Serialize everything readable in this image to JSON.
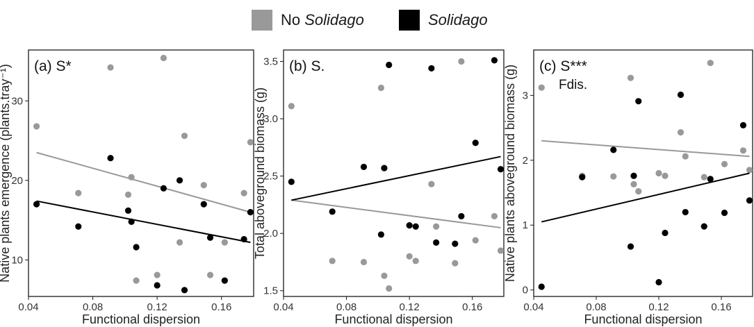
{
  "legend": {
    "items": [
      {
        "prefix": "No ",
        "italic": "Solidago",
        "color": "#999999"
      },
      {
        "prefix": "",
        "italic": "Solidago",
        "color": "#000000"
      }
    ]
  },
  "colors": {
    "no_solidago": "#999999",
    "solidago": "#000000"
  },
  "chart_data": [
    {
      "type": "scatter",
      "panel_label": "(a) S*",
      "panel_sublabel": "",
      "xlabel": "Functional dispersion",
      "ylabel": "Native plants emergence (plants.tray⁻¹)",
      "xlim": [
        0.04,
        0.18
      ],
      "ylim": [
        5.4,
        36.4
      ],
      "xticks": [
        0.04,
        0.08,
        0.12,
        0.16
      ],
      "xtick_labels": [
        "0.04",
        "0.08",
        "0.12",
        "0.16"
      ],
      "yticks": [
        10,
        20,
        30
      ],
      "ytick_labels": [
        "10",
        "20",
        "30"
      ],
      "series": [
        {
          "name": "No Solidago",
          "points": [
            [
              0.045,
              26.8
            ],
            [
              0.071,
              18.4
            ],
            [
              0.091,
              34.2
            ],
            [
              0.102,
              18.2
            ],
            [
              0.104,
              20.4
            ],
            [
              0.107,
              7.4
            ],
            [
              0.12,
              8.1
            ],
            [
              0.124,
              35.4
            ],
            [
              0.134,
              12.2
            ],
            [
              0.137,
              25.6
            ],
            [
              0.149,
              19.4
            ],
            [
              0.153,
              8.1
            ],
            [
              0.162,
              12.2
            ],
            [
              0.174,
              18.4
            ],
            [
              0.178,
              24.8
            ]
          ],
          "fit": [
            [
              0.045,
              23.5
            ],
            [
              0.178,
              16.0
            ]
          ]
        },
        {
          "name": "Solidago",
          "points": [
            [
              0.045,
              17.0
            ],
            [
              0.071,
              14.2
            ],
            [
              0.091,
              22.8
            ],
            [
              0.102,
              16.2
            ],
            [
              0.104,
              14.8
            ],
            [
              0.107,
              11.6
            ],
            [
              0.12,
              6.8
            ],
            [
              0.124,
              19.0
            ],
            [
              0.134,
              20.0
            ],
            [
              0.137,
              6.2
            ],
            [
              0.149,
              17.0
            ],
            [
              0.153,
              12.8
            ],
            [
              0.162,
              7.4
            ],
            [
              0.174,
              12.6
            ],
            [
              0.178,
              16.0
            ]
          ],
          "fit": [
            [
              0.045,
              17.4
            ],
            [
              0.178,
              12.2
            ]
          ]
        }
      ]
    },
    {
      "type": "scatter",
      "panel_label": "(b) S.",
      "panel_sublabel": "",
      "xlabel": "Functional dispersion",
      "ylabel": "Total aboveground biomass (g)",
      "xlim": [
        0.04,
        0.18
      ],
      "ylim": [
        1.45,
        3.6
      ],
      "xticks": [
        0.04,
        0.08,
        0.12,
        0.16
      ],
      "xtick_labels": [
        "0.04",
        "0.08",
        "0.12",
        "0.16"
      ],
      "yticks": [
        1.5,
        2.0,
        2.5,
        3.0,
        3.5
      ],
      "ytick_labels": [
        "1.5",
        "2.0",
        "2.5",
        "3.0",
        "3.5"
      ],
      "series": [
        {
          "name": "No Solidago",
          "points": [
            [
              0.045,
              3.11
            ],
            [
              0.071,
              1.76
            ],
            [
              0.091,
              1.75
            ],
            [
              0.102,
              3.27
            ],
            [
              0.104,
              1.63
            ],
            [
              0.107,
              1.52
            ],
            [
              0.12,
              1.8
            ],
            [
              0.124,
              1.76
            ],
            [
              0.134,
              2.43
            ],
            [
              0.137,
              2.06
            ],
            [
              0.149,
              1.74
            ],
            [
              0.153,
              3.5
            ],
            [
              0.162,
              1.94
            ],
            [
              0.174,
              2.15
            ],
            [
              0.178,
              1.85
            ]
          ],
          "fit": [
            [
              0.045,
              2.29
            ],
            [
              0.178,
              2.05
            ]
          ]
        },
        {
          "name": "Solidago",
          "points": [
            [
              0.045,
              2.45
            ],
            [
              0.071,
              2.19
            ],
            [
              0.091,
              2.58
            ],
            [
              0.102,
              1.99
            ],
            [
              0.104,
              2.57
            ],
            [
              0.107,
              3.47
            ],
            [
              0.12,
              2.07
            ],
            [
              0.124,
              2.06
            ],
            [
              0.134,
              3.44
            ],
            [
              0.137,
              1.92
            ],
            [
              0.149,
              1.91
            ],
            [
              0.153,
              2.15
            ],
            [
              0.162,
              2.79
            ],
            [
              0.174,
              3.51
            ],
            [
              0.178,
              2.56
            ]
          ],
          "fit": [
            [
              0.045,
              2.29
            ],
            [
              0.178,
              2.67
            ]
          ]
        }
      ]
    },
    {
      "type": "scatter",
      "panel_label": "(c) S***",
      "panel_sublabel": "Fdis.",
      "xlabel": "Functional dispersion",
      "ylabel": "Native plants aboveground biomass (g)",
      "xlim": [
        0.04,
        0.18
      ],
      "ylim": [
        -0.1,
        3.7
      ],
      "xticks": [
        0.04,
        0.08,
        0.12,
        0.16
      ],
      "xtick_labels": [
        "0.04",
        "0.08",
        "0.12",
        "0.16"
      ],
      "yticks": [
        0,
        1,
        2,
        3
      ],
      "ytick_labels": [
        "0",
        "1",
        "2",
        "3"
      ],
      "series": [
        {
          "name": "No Solidago",
          "points": [
            [
              0.045,
              3.12
            ],
            [
              0.071,
              1.76
            ],
            [
              0.091,
              1.75
            ],
            [
              0.102,
              3.27
            ],
            [
              0.104,
              1.63
            ],
            [
              0.107,
              1.52
            ],
            [
              0.12,
              1.8
            ],
            [
              0.124,
              1.76
            ],
            [
              0.134,
              2.43
            ],
            [
              0.137,
              2.06
            ],
            [
              0.149,
              1.74
            ],
            [
              0.153,
              3.5
            ],
            [
              0.162,
              1.94
            ],
            [
              0.174,
              2.15
            ],
            [
              0.178,
              1.85
            ]
          ],
          "fit": [
            [
              0.045,
              2.3
            ],
            [
              0.178,
              2.06
            ]
          ]
        },
        {
          "name": "Solidago",
          "points": [
            [
              0.045,
              0.05
            ],
            [
              0.071,
              1.74
            ],
            [
              0.091,
              2.16
            ],
            [
              0.102,
              0.67
            ],
            [
              0.104,
              1.76
            ],
            [
              0.107,
              2.91
            ],
            [
              0.12,
              0.12
            ],
            [
              0.124,
              0.88
            ],
            [
              0.134,
              3.01
            ],
            [
              0.137,
              1.2
            ],
            [
              0.149,
              0.98
            ],
            [
              0.153,
              1.71
            ],
            [
              0.162,
              1.19
            ],
            [
              0.174,
              2.54
            ],
            [
              0.178,
              1.38
            ]
          ],
          "fit": [
            [
              0.045,
              1.05
            ],
            [
              0.178,
              1.8
            ]
          ]
        }
      ]
    }
  ]
}
